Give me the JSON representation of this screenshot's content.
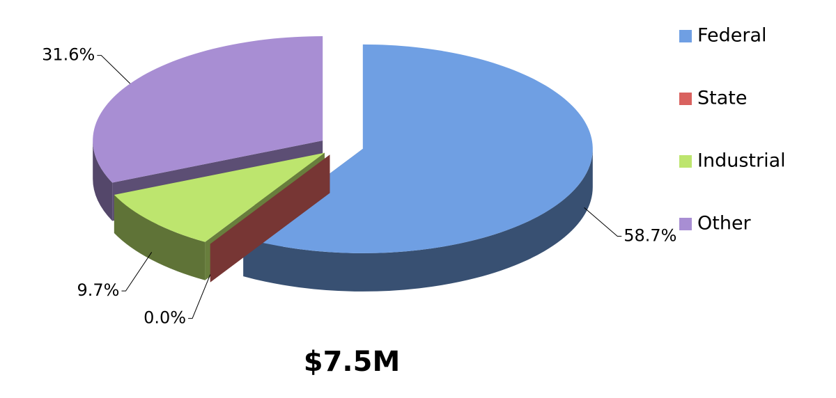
{
  "chart_data": {
    "type": "pie3d",
    "title": "$7.5M",
    "categories": [
      "Federal",
      "State",
      "Industrial",
      "Other"
    ],
    "values": [
      58.7,
      0.0,
      9.7,
      31.6
    ],
    "value_labels": [
      "58.7%",
      "0.0%",
      "9.7%",
      "31.6%"
    ],
    "colors": [
      "#6f9fe3",
      "#d9625f",
      "#bde56e",
      "#a88ed3"
    ],
    "legend": "right"
  }
}
